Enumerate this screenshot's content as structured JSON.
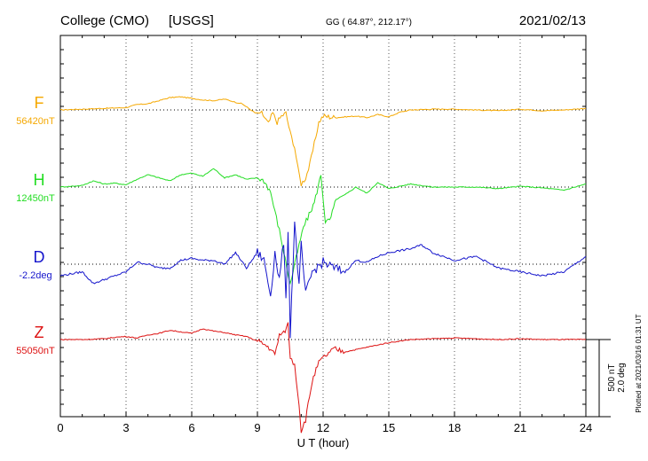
{
  "header": {
    "station": "College (CMO)",
    "agency": "[USGS]",
    "coords": "GG ( 64.87°, 212.17°)",
    "date": "2021/02/13"
  },
  "footer": {
    "plotted": "Plotted at 2021/03/16 01:31  UT"
  },
  "chart_data": {
    "type": "line",
    "title": "College (CMO)  [USGS]",
    "xlabel": "U T (hour)",
    "xlim": [
      0,
      24
    ],
    "xticks": [
      "0",
      "3",
      "6",
      "9",
      "12",
      "15",
      "18",
      "21",
      "24"
    ],
    "grid": true,
    "scale_bar": {
      "label_nt": "500 nT",
      "label_deg": "2.0 deg"
    },
    "series": [
      {
        "name": "F",
        "baseline_label": "56420nT",
        "color": "#f5a800",
        "baseline_value": 56420,
        "unit": "nT",
        "x": [
          0,
          1,
          2,
          3,
          3.5,
          4,
          4.5,
          5,
          5.5,
          6,
          6.5,
          7,
          7.5,
          8,
          8.3,
          8.6,
          8.9,
          9.2,
          9.5,
          9.7,
          9.9,
          10.1,
          10.3,
          10.5,
          10.7,
          10.85,
          11,
          11.2,
          11.4,
          11.6,
          11.8,
          12,
          12.3,
          12.6,
          13,
          13.5,
          14,
          14.5,
          15,
          15.5,
          16,
          17,
          18,
          19,
          20,
          21,
          22,
          23,
          24
        ],
        "values": [
          0,
          5,
          10,
          15,
          35,
          40,
          60,
          80,
          85,
          75,
          65,
          60,
          70,
          50,
          40,
          10,
          -20,
          -20,
          -90,
          -20,
          -80,
          -40,
          -20,
          -150,
          -240,
          -380,
          -480,
          -440,
          -350,
          -220,
          -80,
          -40,
          -45,
          -50,
          -45,
          -40,
          -50,
          -30,
          -45,
          -15,
          0,
          5,
          5,
          0,
          -5,
          5,
          -5,
          0,
          10
        ]
      },
      {
        "name": "H",
        "baseline_label": "12450nT",
        "color": "#22dd22",
        "baseline_value": 12450,
        "unit": "nT",
        "x": [
          0,
          1,
          1.5,
          2,
          2.5,
          3,
          3.5,
          4,
          4.5,
          5,
          5.5,
          6,
          6.5,
          7,
          7.5,
          8,
          8.5,
          9,
          9.3,
          9.6,
          9.8,
          10,
          10.2,
          10.4,
          10.5,
          10.7,
          10.9,
          11.1,
          11.3,
          11.6,
          11.9,
          12.1,
          12.3,
          12.6,
          13,
          13.5,
          14,
          14.5,
          15,
          16,
          17,
          18,
          19,
          20,
          21,
          22,
          23,
          24
        ],
        "values": [
          0,
          10,
          40,
          20,
          25,
          15,
          50,
          80,
          60,
          40,
          80,
          90,
          70,
          120,
          60,
          80,
          50,
          60,
          40,
          -30,
          -160,
          -280,
          -420,
          -560,
          -630,
          -500,
          -380,
          -260,
          -200,
          -100,
          80,
          -220,
          -220,
          -80,
          -50,
          0,
          -40,
          30,
          -10,
          20,
          0,
          0,
          0,
          -10,
          5,
          -5,
          -20,
          20
        ]
      },
      {
        "name": "D",
        "baseline_label": "-2.2deg",
        "color": "#1515cc",
        "baseline_value": -2.2,
        "unit": "deg",
        "x": [
          0,
          1,
          1.5,
          2,
          2.5,
          3,
          3.5,
          4,
          4.5,
          5,
          5.5,
          6,
          6.5,
          7,
          7.5,
          8,
          8.5,
          9,
          9.3,
          9.6,
          9.8,
          10,
          10.2,
          10.3,
          10.4,
          10.5,
          10.7,
          10.9,
          11,
          11.2,
          11.5,
          12,
          12.5,
          13,
          13.5,
          14,
          14.5,
          15,
          16,
          16.5,
          17,
          18,
          19,
          20,
          21,
          22,
          23,
          24
        ],
        "values": [
          -0.3,
          -0.2,
          -0.5,
          -0.4,
          -0.3,
          -0.2,
          0.05,
          0,
          -0.1,
          -0.1,
          0.1,
          0.15,
          0.1,
          0.1,
          0,
          0.3,
          -0.1,
          0.3,
          0.1,
          -0.8,
          0.3,
          -0.4,
          0.6,
          -1.0,
          0.9,
          -1.8,
          1.1,
          -0.6,
          0.5,
          -0.8,
          -0.2,
          0.05,
          -0.1,
          -0.2,
          0.1,
          0.05,
          0.2,
          0.3,
          0.4,
          0.5,
          0.3,
          0.1,
          0.2,
          -0.1,
          -0.2,
          -0.3,
          -0.2,
          0.2
        ]
      },
      {
        "name": "Z",
        "baseline_label": "55050nT",
        "color": "#dd1111",
        "baseline_value": 55050,
        "unit": "nT",
        "x": [
          0,
          1,
          2,
          2.5,
          3,
          3.5,
          4,
          4.5,
          5,
          5.5,
          6,
          6.5,
          7,
          7.5,
          8,
          8.5,
          9,
          9.3,
          9.6,
          9.8,
          10,
          10.2,
          10.4,
          10.5,
          10.7,
          10.9,
          11,
          11.2,
          11.5,
          11.8,
          12,
          12.5,
          13,
          14,
          15,
          16,
          17,
          18,
          19,
          20,
          21,
          22,
          23,
          24
        ],
        "values": [
          0,
          0,
          5,
          15,
          20,
          10,
          30,
          40,
          60,
          50,
          40,
          70,
          55,
          45,
          30,
          20,
          -10,
          -30,
          -60,
          -100,
          30,
          40,
          100,
          -120,
          -160,
          -420,
          -590,
          -520,
          -270,
          -150,
          -120,
          -60,
          -80,
          -50,
          -20,
          0,
          5,
          10,
          5,
          0,
          5,
          0,
          0,
          0
        ]
      }
    ]
  }
}
